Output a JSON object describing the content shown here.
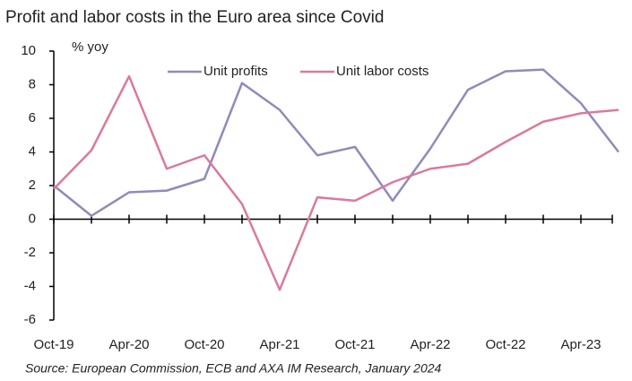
{
  "chart_data": {
    "type": "line",
    "title": "Profit and labor costs in the Euro area since Covid",
    "y_label": "% yoy",
    "source": "Source: European Commission, ECB and AXA IM Research, January 2024",
    "categories": [
      "Oct-19",
      null,
      "Apr-20",
      null,
      "Oct-20",
      null,
      "Apr-21",
      null,
      "Oct-21",
      null,
      "Apr-22",
      null,
      "Oct-22",
      null,
      "Apr-23",
      null
    ],
    "series": [
      {
        "name": "Unit profits",
        "color": "#8e8cb8",
        "values": [
          2.0,
          0.2,
          1.6,
          1.7,
          2.4,
          8.1,
          6.5,
          3.8,
          4.3,
          1.1,
          4.2,
          7.7,
          8.8,
          8.9,
          6.9,
          4.0
        ]
      },
      {
        "name": "Unit labor costs",
        "color": "#d97a9e",
        "values": [
          1.8,
          4.1,
          8.5,
          3.0,
          3.8,
          0.9,
          -4.2,
          1.3,
          1.1,
          2.2,
          3.0,
          3.3,
          4.6,
          5.8,
          6.3,
          6.5
        ]
      }
    ],
    "ylim": [
      -6,
      10
    ],
    "yticks": [
      -6,
      -4,
      -2,
      0,
      2,
      4,
      6,
      8,
      10
    ],
    "grid": false
  }
}
